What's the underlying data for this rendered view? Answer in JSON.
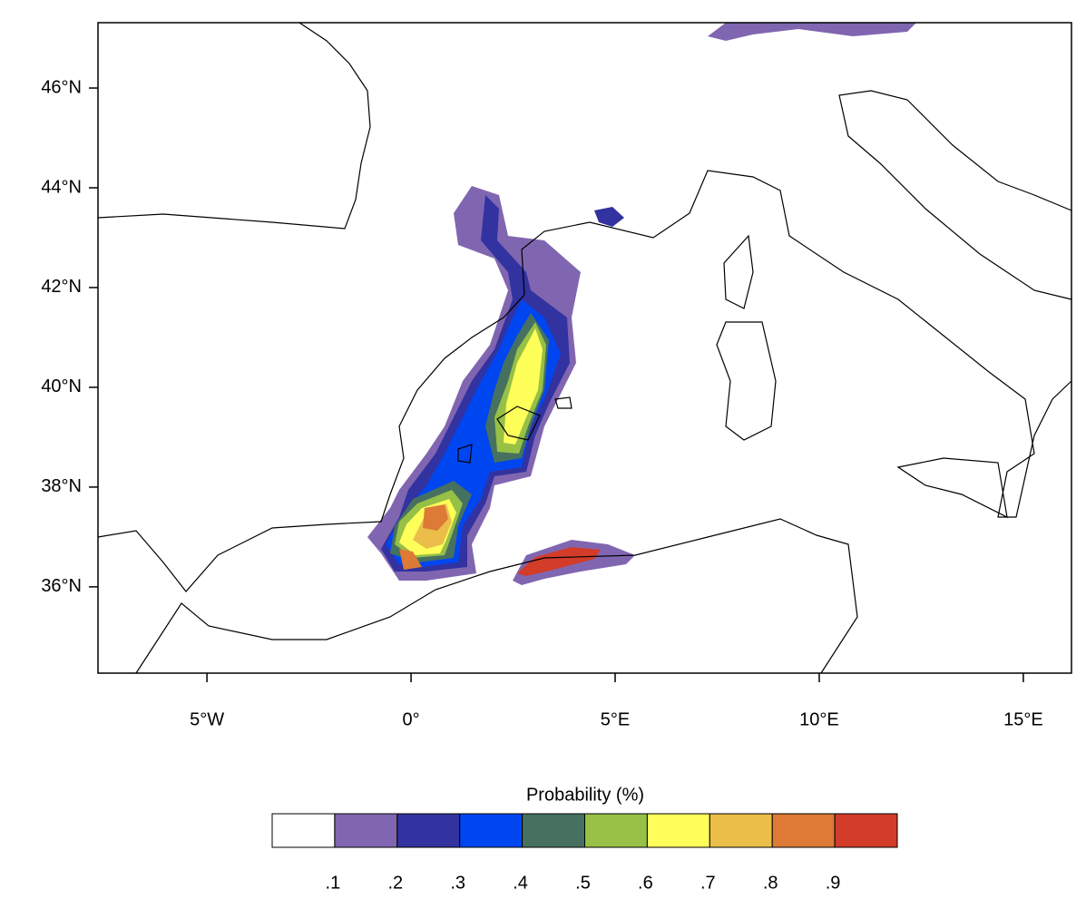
{
  "map": {
    "lon_range": [
      -7.67,
      16.18
    ],
    "lat_range": [
      34.27,
      47.31
    ],
    "lon_ticks": [
      {
        "value": -5,
        "label": "5°W"
      },
      {
        "value": 0,
        "label": "0°"
      },
      {
        "value": 5,
        "label": "5°E"
      },
      {
        "value": 10,
        "label": "10°E"
      },
      {
        "value": 15,
        "label": "15°E"
      }
    ],
    "lat_ticks": [
      {
        "value": 36,
        "label": "36°N"
      },
      {
        "value": 38,
        "label": "38°N"
      },
      {
        "value": 40,
        "label": "40°N"
      },
      {
        "value": 42,
        "label": "42°N"
      },
      {
        "value": 44,
        "label": "44°N"
      },
      {
        "value": 46,
        "label": "46°N"
      }
    ]
  },
  "colorbar": {
    "title": "Probability  (%)",
    "colors": [
      "#ffffff",
      "#8066b0",
      "#3232a0",
      "#0046f0",
      "#467060",
      "#96c046",
      "#ffff5a",
      "#ebbe4a",
      "#dc7a36",
      "#d23c28"
    ],
    "labels": [
      ".1",
      ".2",
      ".3",
      ".4",
      ".5",
      ".6",
      ".7",
      ".8",
      ".9"
    ]
  }
}
